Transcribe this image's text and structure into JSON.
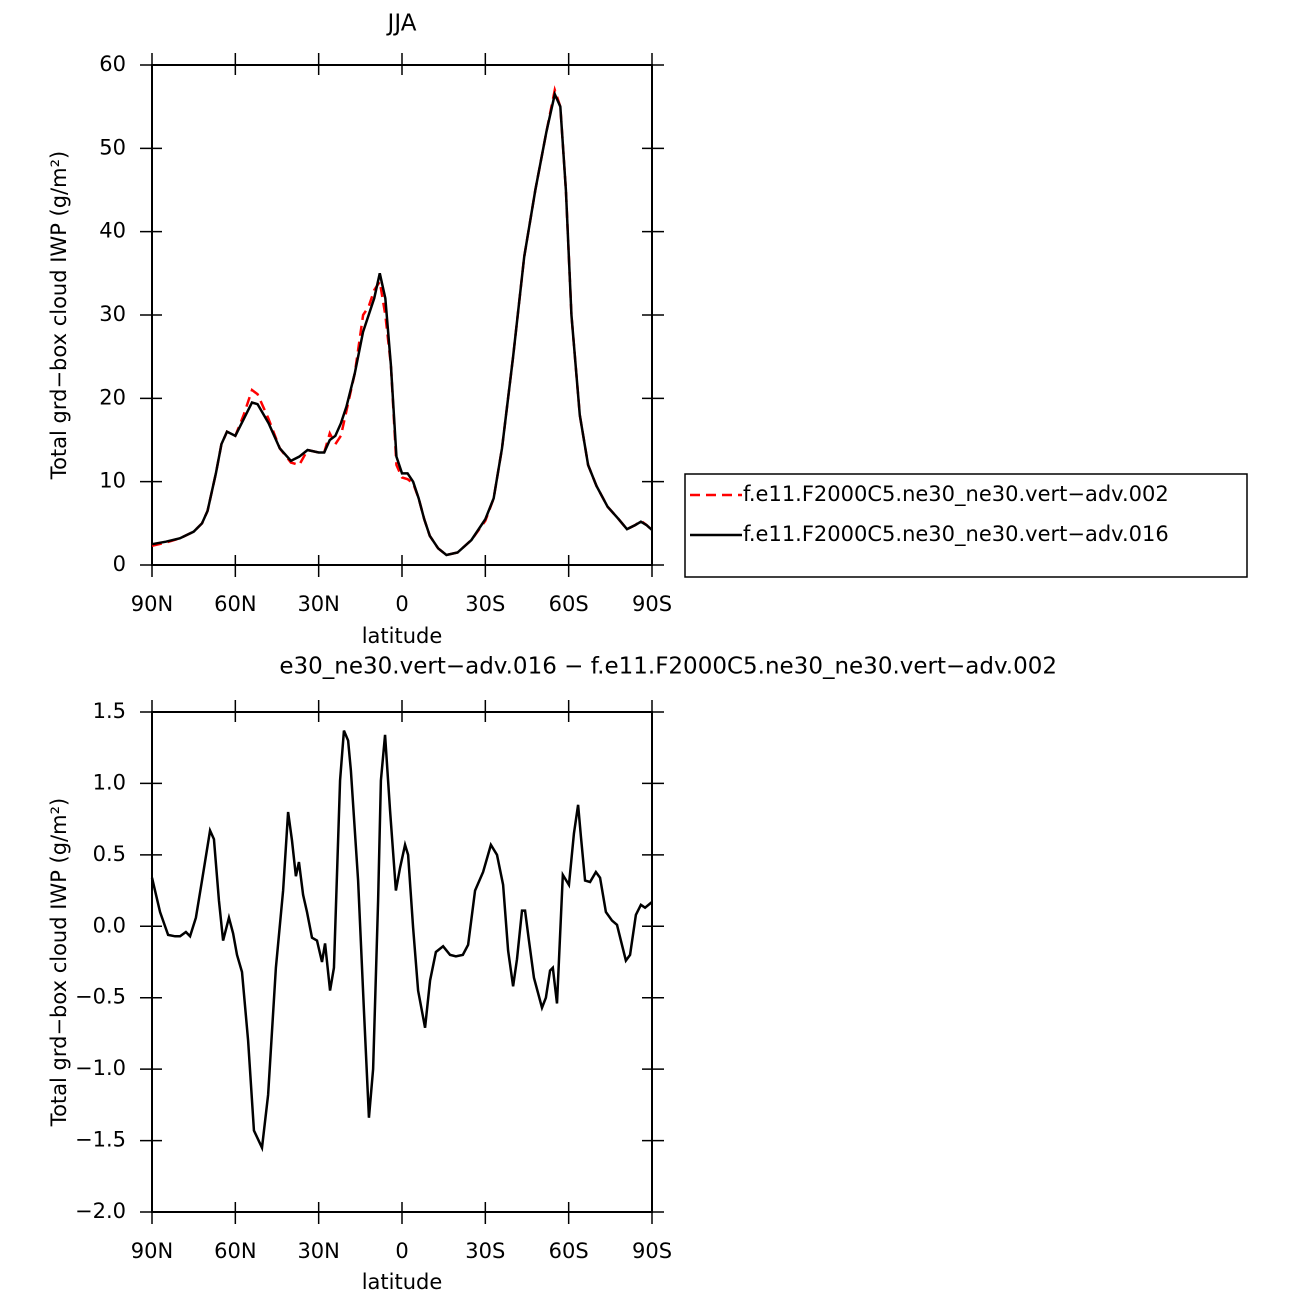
{
  "chart_data": [
    {
      "type": "line",
      "title": "JJA",
      "xlabel": "latitude",
      "ylabel": "Total grd−box cloud IWP (g/m²)",
      "x": [
        90,
        85,
        80,
        75,
        72,
        70,
        67,
        65,
        63,
        60,
        57,
        54,
        52,
        48,
        44,
        40,
        37,
        34,
        30,
        28,
        26,
        24,
        22,
        20,
        17,
        14,
        12,
        10,
        8,
        6,
        4,
        2,
        0,
        -2,
        -4,
        -6,
        -8,
        -10,
        -13,
        -16,
        -20,
        -25,
        -30,
        -33,
        -36,
        -40,
        -44,
        -48,
        -52,
        -55,
        -57,
        -59,
        -61,
        -64,
        -67,
        -70,
        -74,
        -78,
        -81,
        -84,
        -86,
        -88,
        -90
      ],
      "series": [
        {
          "name": "f.e11.F2000C5.ne30_ne30.vert−adv.002",
          "color": "#ff0000",
          "line_style": "dashed",
          "values": [
            2.3,
            2.7,
            3.2,
            4.0,
            5.0,
            6.5,
            11,
            14.5,
            16,
            15.5,
            18,
            21,
            20.5,
            17.5,
            14,
            12.3,
            12,
            13.8,
            13.5,
            13.5,
            15.8,
            14.5,
            15.5,
            18.5,
            23,
            30,
            31,
            33,
            34,
            30,
            24,
            12,
            10.5,
            10.3,
            9.8,
            8,
            5.5,
            3.5,
            2,
            1.2,
            1.5,
            3,
            5.3,
            8,
            14,
            25,
            37,
            45,
            52,
            57,
            55,
            45,
            30,
            18,
            12,
            9.5,
            7,
            5.5,
            4.3,
            4.8,
            5.3,
            4.8,
            4.2
          ]
        },
        {
          "name": "f.e11.F2000C5.ne30_ne30.vert−adv.016",
          "color": "#000000",
          "line_style": "solid",
          "values": [
            2.5,
            2.8,
            3.2,
            4.0,
            5.0,
            6.5,
            11,
            14.5,
            16,
            15.5,
            17.5,
            19.5,
            19.3,
            17,
            14,
            12.5,
            13,
            13.8,
            13.5,
            13.5,
            15,
            15.5,
            17,
            19,
            23,
            28,
            30,
            32,
            35,
            32,
            24,
            13,
            11,
            11,
            10,
            8,
            5.5,
            3.5,
            2,
            1.2,
            1.5,
            3,
            5.5,
            8,
            14,
            25,
            37,
            45,
            52,
            56.5,
            55,
            45,
            30,
            18,
            12,
            9.5,
            7,
            5.5,
            4.3,
            4.8,
            5.2,
            4.8,
            4.2
          ]
        }
      ],
      "xlim": [
        90,
        -90
      ],
      "xticks": [
        {
          "value": 90,
          "label": "90N"
        },
        {
          "value": 60,
          "label": "60N"
        },
        {
          "value": 30,
          "label": "30N"
        },
        0,
        {
          "value": -30,
          "label": "30S"
        },
        {
          "value": -60,
          "label": "60S"
        },
        {
          "value": -90,
          "label": "90S"
        }
      ],
      "ylim": [
        0,
        60
      ],
      "yticks": [
        0,
        10,
        20,
        30,
        40,
        50,
        60
      ],
      "legend": "right"
    },
    {
      "type": "line",
      "title": "e30_ne30.vert−adv.016 − f.e11.F2000C5.ne30_ne30.vert−adv.002",
      "xlabel": "latitude",
      "ylabel": "Total grd−box cloud IWP (g/m²)",
      "x": [
        90,
        87.1,
        84.2,
        81.7,
        79.9,
        77.8,
        76.3,
        74.2,
        72,
        69.1,
        67.7,
        65.9,
        64.4,
        62.3,
        60.8,
        59.4,
        57.6,
        55.4,
        53.3,
        50.4,
        48.2,
        45.4,
        42.8,
        41,
        39.6,
        38.2,
        37.1,
        35.6,
        34.2,
        32.4,
        30.6,
        28.8,
        27.7,
        25.9,
        24.5,
        22.3,
        20.9,
        19.4,
        18.4,
        15.8,
        13.7,
        11.9,
        10.4,
        8.6,
        7.6,
        6.1,
        4.3,
        2.2,
        0.7,
        -1.1,
        -2.2,
        -4,
        -5.8,
        -8.3,
        -10.1,
        -12.2,
        -14.8,
        -17.3,
        -19.4,
        -21.9,
        -23.8,
        -26.3,
        -29.2,
        -32,
        -34.2,
        -36.4,
        -38.2,
        -40,
        -41.4,
        -43.2,
        -44.3,
        -45.7,
        -47.5,
        -50.4,
        -51.8,
        -53.3,
        -54.3,
        -55.8,
        -57.9,
        -60.1,
        -61.9,
        -63.4,
        -64.4,
        -65.9,
        -67.7,
        -69.8,
        -71.3,
        -73.4,
        -75.6,
        -77.4,
        -78.8,
        -80.6,
        -82.1,
        -84.2,
        -86,
        -87.5,
        -90
      ],
      "series": [
        {
          "color": "#000000",
          "line_style": "solid",
          "values": [
            0.34,
            0.1,
            -0.06,
            -0.07,
            -0.07,
            -0.04,
            -0.07,
            0.06,
            0.32,
            0.67,
            0.61,
            0.18,
            -0.1,
            0.06,
            -0.05,
            -0.2,
            -0.32,
            -0.8,
            -1.43,
            -1.55,
            -1.18,
            -0.29,
            0.25,
            0.8,
            0.6,
            0.35,
            0.45,
            0.22,
            0.1,
            -0.08,
            -0.1,
            -0.25,
            -0.12,
            -0.45,
            -0.29,
            1.02,
            1.37,
            1.3,
            1.09,
            0.32,
            -0.59,
            -1.34,
            -1.0,
            0.18,
            1.02,
            1.34,
            0.81,
            0.25,
            0.41,
            0.57,
            0.5,
            -0.01,
            -0.45,
            -0.71,
            -0.38,
            -0.18,
            -0.14,
            -0.2,
            -0.21,
            -0.2,
            -0.13,
            0.25,
            0.38,
            0.57,
            0.5,
            0.29,
            -0.17,
            -0.42,
            -0.23,
            0.11,
            0.11,
            -0.1,
            -0.36,
            -0.57,
            -0.5,
            -0.31,
            -0.29,
            -0.54,
            0.36,
            0.29,
            0.65,
            0.85,
            0.63,
            0.32,
            0.31,
            0.38,
            0.34,
            0.1,
            0.04,
            0.01,
            -0.1,
            -0.24,
            -0.2,
            0.08,
            0.15,
            0.13,
            0.17
          ]
        }
      ],
      "xlim": [
        90,
        -90
      ],
      "xticks": [
        {
          "value": 90,
          "label": "90N"
        },
        {
          "value": 60,
          "label": "60N"
        },
        {
          "value": 30,
          "label": "30N"
        },
        0,
        {
          "value": -30,
          "label": "30S"
        },
        {
          "value": -60,
          "label": "60S"
        },
        {
          "value": -90,
          "label": "90S"
        }
      ],
      "ylim": [
        -2.0,
        1.5
      ],
      "yticks": [
        {
          "value": -2.0,
          "label": "−2.0"
        },
        {
          "value": -1.5,
          "label": "−1.5"
        },
        {
          "value": -1.0,
          "label": "−1.0"
        },
        {
          "value": -0.5,
          "label": "−0.5"
        },
        {
          "value": 0.0,
          "label": "0.0"
        },
        0.5,
        {
          "value": 1.0,
          "label": "1.0"
        },
        1.5
      ]
    }
  ]
}
